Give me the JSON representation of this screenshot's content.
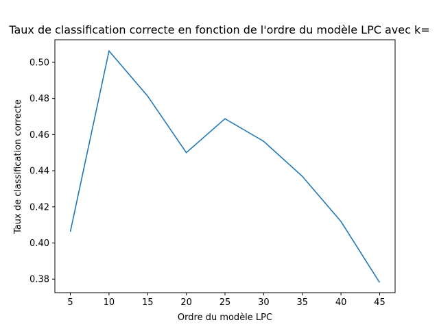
{
  "chart_data": {
    "type": "line",
    "title": "Taux de classification correcte en fonction de l'ordre du modèle LPC avec k=",
    "xlabel": "Ordre du modèle LPC",
    "ylabel": "Taux de classification correcte",
    "x": [
      5,
      10,
      15,
      20,
      25,
      30,
      35,
      40,
      45
    ],
    "xticks": [
      "5",
      "10",
      "15",
      "20",
      "25",
      "30",
      "35",
      "40",
      "45"
    ],
    "yticks": [
      "0.38",
      "0.40",
      "0.42",
      "0.44",
      "0.46",
      "0.48",
      "0.50"
    ],
    "xlim": [
      3,
      47
    ],
    "ylim": [
      0.3725,
      0.5125
    ],
    "grid": false,
    "series": [
      {
        "color": "#1f77b4",
        "values": [
          0.4063,
          0.5063,
          0.4813,
          0.45,
          0.4688,
          0.4563,
          0.4369,
          0.4119,
          0.3781
        ]
      }
    ]
  }
}
